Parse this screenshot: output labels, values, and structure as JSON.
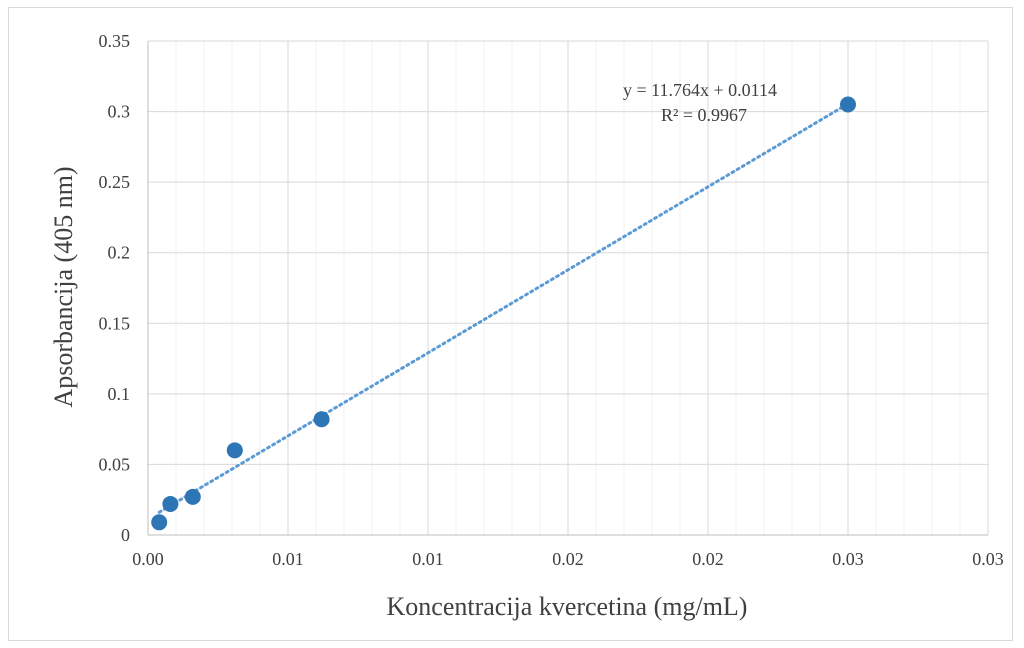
{
  "chart_data": {
    "type": "scatter",
    "xlabel": "Koncentracija kvercetina (mg/mL)",
    "ylabel": "Apsorbancija (405 nm)",
    "xlim": [
      0,
      0.03
    ],
    "ylim": [
      0,
      0.35
    ],
    "x_tick_labels": [
      "0.00",
      "0.01",
      "0.01",
      "0.02",
      "0.02",
      "0.03",
      "0.03"
    ],
    "x_tick_values": [
      0,
      0.005,
      0.01,
      0.015,
      0.02,
      0.025,
      0.03
    ],
    "y_tick_labels": [
      "0",
      "0.05",
      "0.1",
      "0.15",
      "0.2",
      "0.25",
      "0.3",
      "0.35"
    ],
    "y_tick_values": [
      0,
      0.05,
      0.1,
      0.15,
      0.2,
      0.25,
      0.3,
      0.35
    ],
    "grid": true,
    "legend": "none",
    "series": [
      {
        "x": [
          0.0004,
          0.0008,
          0.0016,
          0.0031,
          0.0062,
          0.025
        ],
        "y": [
          0.009,
          0.022,
          0.027,
          0.06,
          0.082,
          0.305
        ],
        "color": "#2e75b6"
      }
    ],
    "trendline": {
      "type": "linear",
      "slope": 11.764,
      "intercept": 0.0114,
      "equation": "y = 11.764x + 0.0114",
      "r_squared": "R² = 0.9967",
      "color": "#5b9bd5"
    }
  }
}
